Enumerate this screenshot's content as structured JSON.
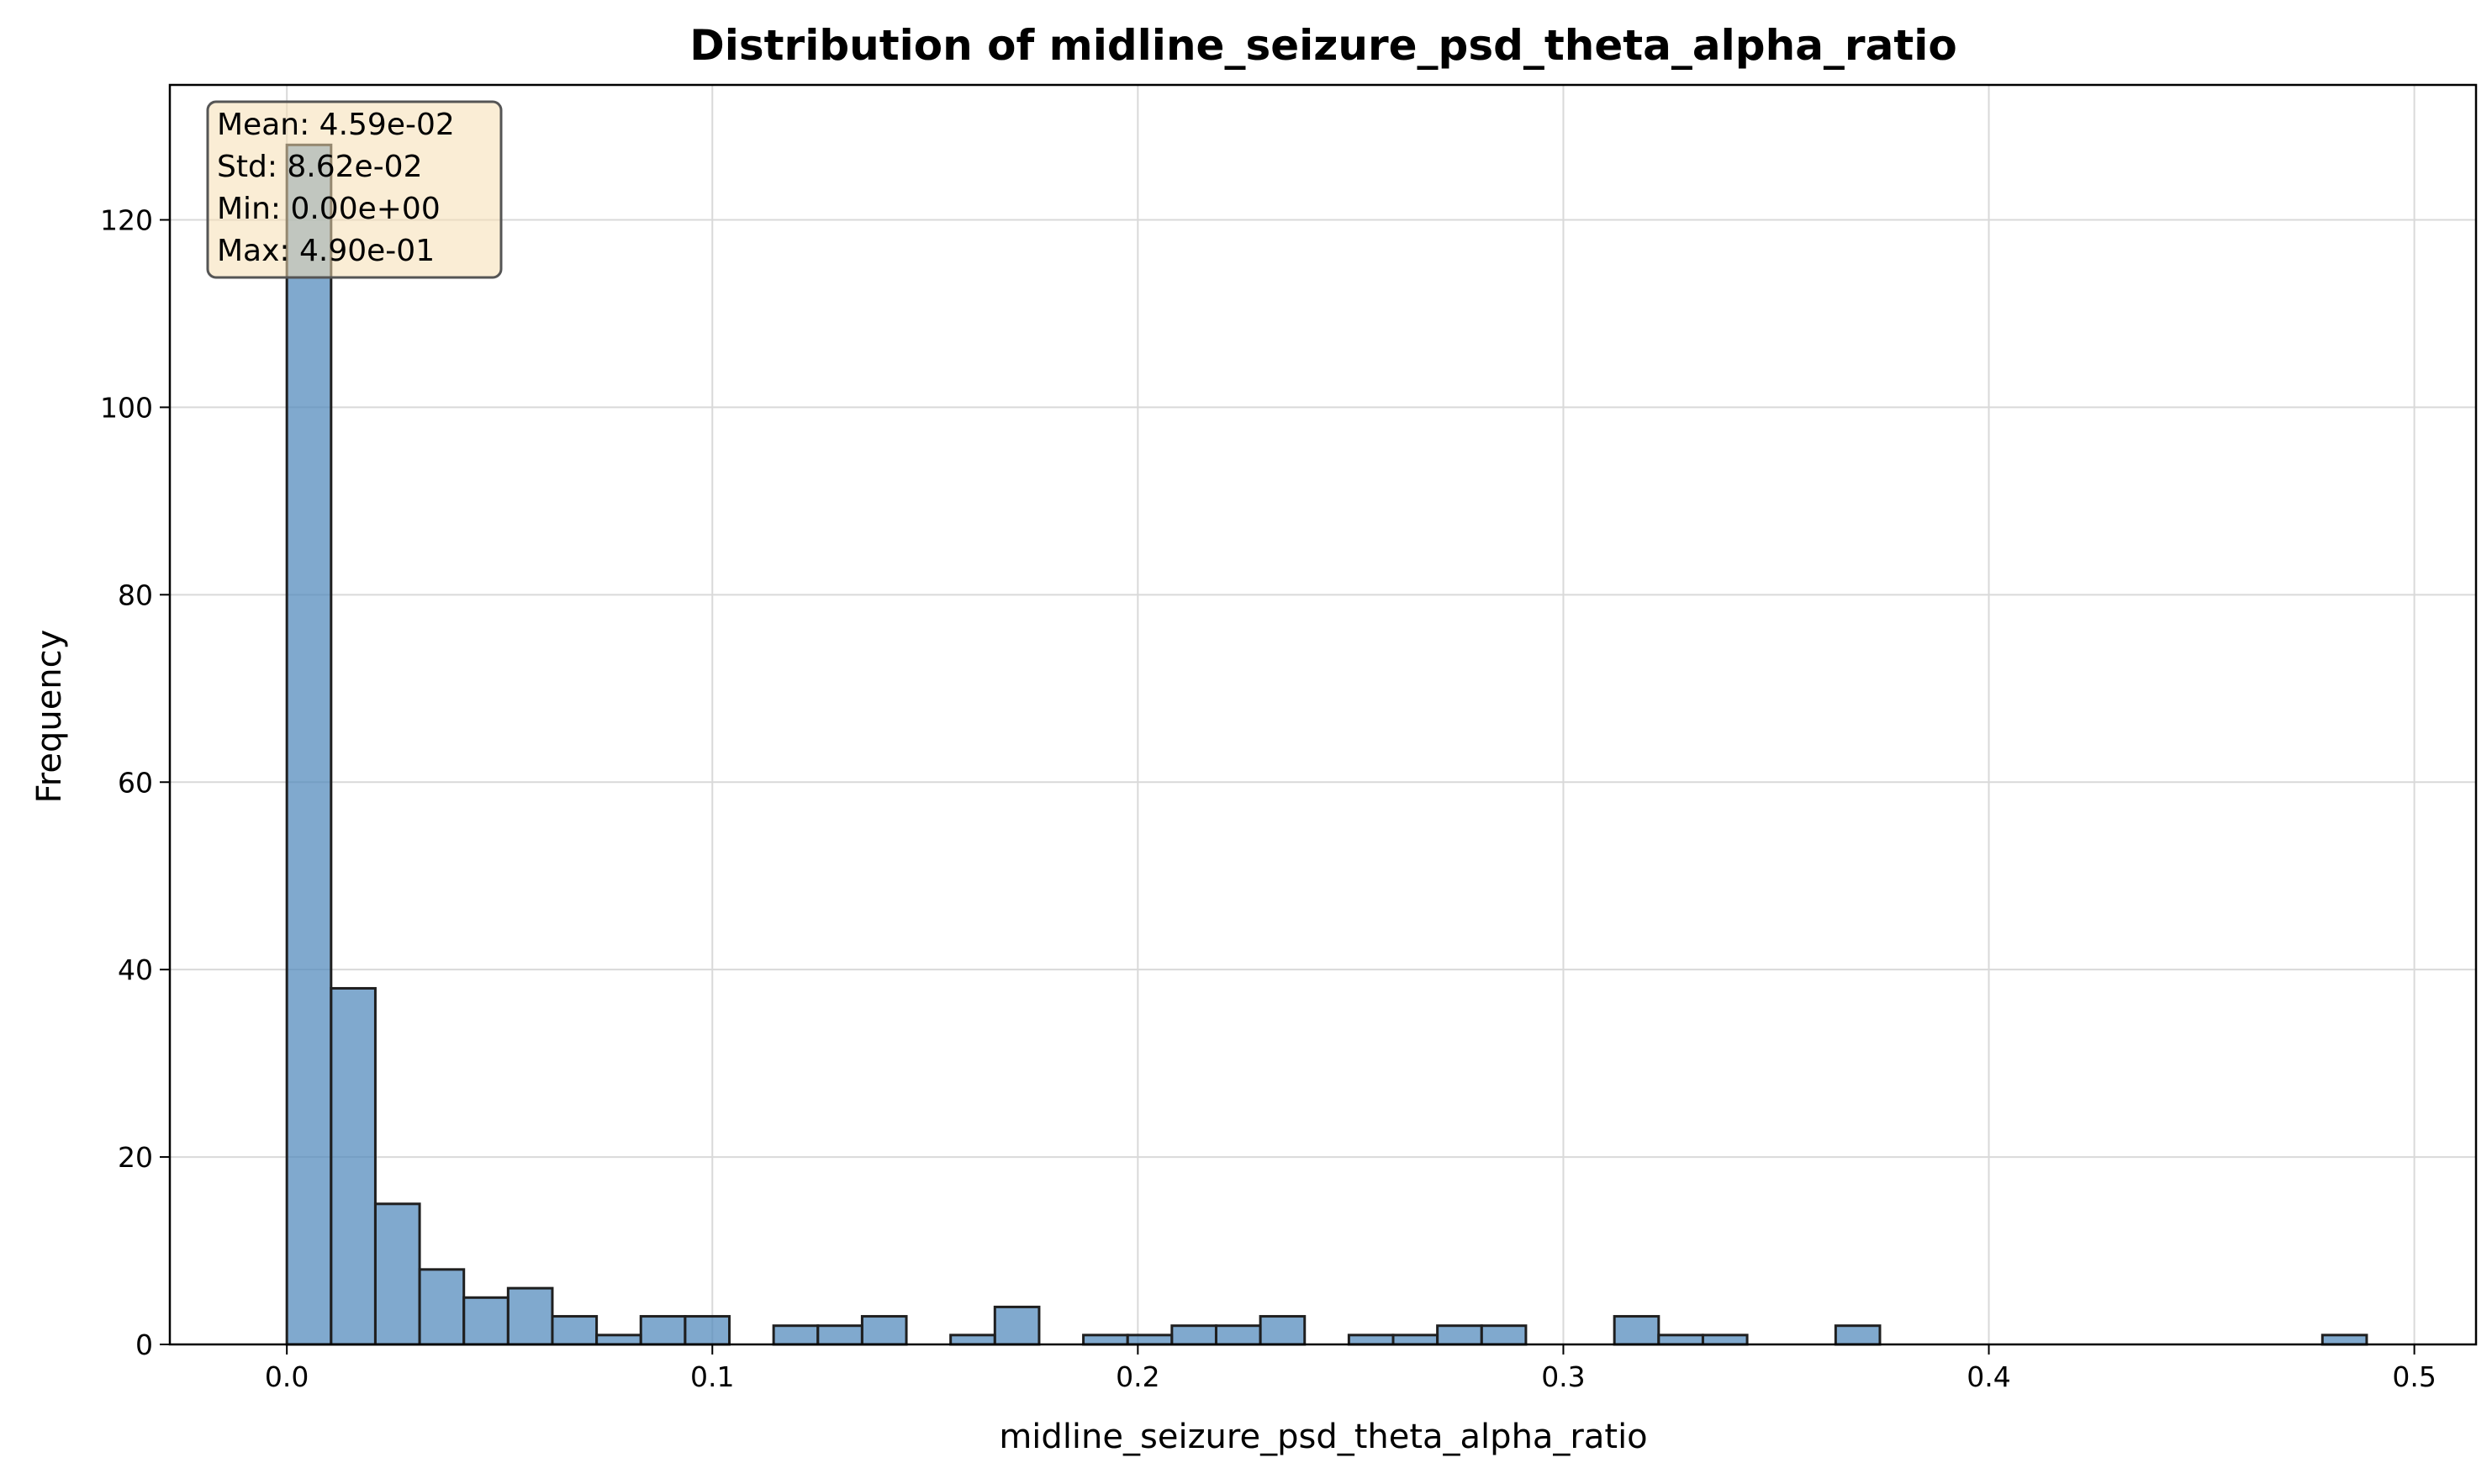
{
  "chart_data": {
    "type": "bar",
    "title": "Distribution of midline_seizure_psd_theta_alpha_ratio",
    "xlabel": "midline_seizure_psd_theta_alpha_ratio",
    "ylabel": "Frequency",
    "xlim": [
      -0.0275,
      0.5145
    ],
    "ylim": [
      0,
      134.4
    ],
    "xticks": [
      0.0,
      0.1,
      0.2,
      0.3,
      0.4,
      0.5
    ],
    "xtick_labels": [
      "0.0",
      "0.1",
      "0.2",
      "0.3",
      "0.4",
      "0.5"
    ],
    "yticks": [
      0,
      20,
      40,
      60,
      80,
      100,
      120
    ],
    "ytick_labels": [
      "0",
      "20",
      "40",
      "60",
      "80",
      "100",
      "120"
    ],
    "grid": true,
    "bin_start": 0.0,
    "bin_width": 0.0104,
    "values": [
      128,
      38,
      15,
      8,
      5,
      6,
      3,
      1,
      3,
      3,
      0,
      2,
      2,
      3,
      0,
      1,
      4,
      0,
      1,
      1,
      2,
      2,
      3,
      0,
      1,
      1,
      2,
      2,
      0,
      0,
      3,
      1,
      1,
      0,
      0,
      2,
      0,
      0,
      0,
      0,
      0,
      0,
      0,
      0,
      0,
      0,
      1
    ],
    "bar_color": "#4f88bb",
    "bar_edge_color": "#1f1f1f",
    "stats_box": {
      "lines": [
        "Mean: 4.59e-02",
        "Std: 8.62e-02",
        "Min: 0.00e+00",
        "Max: 4.90e-01"
      ],
      "position": "top-left",
      "facecolor": "#f5deb3"
    }
  }
}
